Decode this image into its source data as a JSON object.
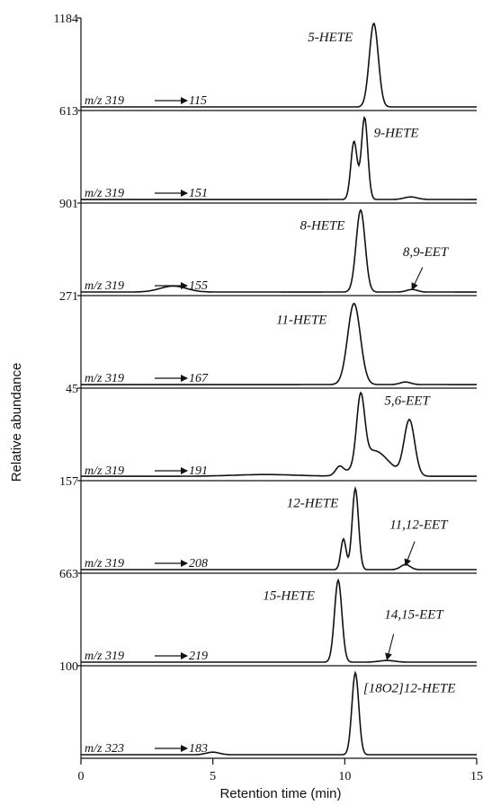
{
  "chart_data": {
    "type": "line",
    "xlabel": "Retention time (min)",
    "ylabel": "Relative abundance",
    "xlim": [
      0,
      15
    ],
    "xticks": [
      "0",
      "5",
      "10",
      "15"
    ],
    "panels": [
      {
        "ymax": "1184",
        "transition": {
          "from": "m/z 319",
          "to": "115"
        },
        "labels": [
          {
            "text": "5-HETE",
            "x": 8.6,
            "y": 0.78
          }
        ],
        "arrows": [],
        "peaks": [
          {
            "x": 11.1,
            "h": 0.98,
            "w": 0.17
          }
        ],
        "baseline": 0.01
      },
      {
        "ymax": "613",
        "transition": {
          "from": "m/z 319",
          "to": "151"
        },
        "labels": [
          {
            "text": "9-HETE",
            "x": 11.1,
            "y": 0.74
          }
        ],
        "arrows": [],
        "peaks": [
          {
            "x": 10.35,
            "h": 0.68,
            "w": 0.12
          },
          {
            "x": 10.75,
            "h": 0.96,
            "w": 0.12
          },
          {
            "x": 12.5,
            "h": 0.03,
            "w": 0.25
          }
        ],
        "baseline": 0.01
      },
      {
        "ymax": "901",
        "transition": {
          "from": "m/z 319",
          "to": "155"
        },
        "labels": [
          {
            "text": "8-HETE",
            "x": 8.3,
            "y": 0.74
          },
          {
            "text": "8,9-EET",
            "x": 12.2,
            "y": 0.43
          }
        ],
        "arrows": [
          {
            "x1": 12.95,
            "y1": 0.3,
            "x2": 12.55,
            "y2": 0.04
          }
        ],
        "peaks": [
          {
            "x": 10.6,
            "h": 0.96,
            "w": 0.17
          },
          {
            "x": 3.5,
            "h": 0.07,
            "w": 0.5
          },
          {
            "x": 12.55,
            "h": 0.03,
            "w": 0.2
          }
        ],
        "baseline": 0.01
      },
      {
        "ymax": "271",
        "transition": {
          "from": "m/z 319",
          "to": "167"
        },
        "labels": [
          {
            "text": "11-HETE",
            "x": 7.4,
            "y": 0.72
          }
        ],
        "arrows": [],
        "peaks": [
          {
            "x": 10.35,
            "h": 0.95,
            "w": 0.24
          },
          {
            "x": 12.3,
            "h": 0.03,
            "w": 0.2
          }
        ],
        "baseline": 0.01
      },
      {
        "ymax": "45",
        "transition": {
          "from": "m/z 319",
          "to": "191"
        },
        "labels": [
          {
            "text": "5,6-EET",
            "x": 11.5,
            "y": 0.86
          }
        ],
        "arrows": [],
        "peaks": [
          {
            "x": 10.6,
            "h": 0.78,
            "w": 0.15
          },
          {
            "x": 11.1,
            "h": 0.3,
            "w": 0.55
          },
          {
            "x": 9.8,
            "h": 0.1,
            "w": 0.15
          },
          {
            "x": 12.45,
            "h": 0.65,
            "w": 0.2
          },
          {
            "x": 7.0,
            "h": 0.02,
            "w": 1.2
          }
        ],
        "baseline": 0.02
      },
      {
        "ymax": "157",
        "transition": {
          "from": "m/z 319",
          "to": "208"
        },
        "labels": [
          {
            "text": "12-HETE",
            "x": 7.8,
            "y": 0.74
          },
          {
            "text": "11,12-EET",
            "x": 11.7,
            "y": 0.49
          }
        ],
        "arrows": [
          {
            "x1": 12.65,
            "y1": 0.34,
            "x2": 12.3,
            "y2": 0.06
          }
        ],
        "peaks": [
          {
            "x": 10.4,
            "h": 0.95,
            "w": 0.12
          },
          {
            "x": 9.95,
            "h": 0.36,
            "w": 0.1
          },
          {
            "x": 12.3,
            "h": 0.06,
            "w": 0.18
          }
        ],
        "baseline": 0.01
      },
      {
        "ymax": "663",
        "transition": {
          "from": "m/z 319",
          "to": "219"
        },
        "labels": [
          {
            "text": "15-HETE",
            "x": 6.9,
            "y": 0.74
          },
          {
            "text": "14,15-EET",
            "x": 11.5,
            "y": 0.52
          }
        ],
        "arrows": [
          {
            "x1": 11.85,
            "y1": 0.34,
            "x2": 11.6,
            "y2": 0.04
          }
        ],
        "peaks": [
          {
            "x": 9.75,
            "h": 0.96,
            "w": 0.14
          },
          {
            "x": 11.6,
            "h": 0.02,
            "w": 0.3
          }
        ],
        "baseline": 0.01
      },
      {
        "ymax": "100",
        "transition": {
          "from": "m/z 323",
          "to": "183"
        },
        "labels": [
          {
            "text": "[18O2]12-HETE",
            "x": 10.7,
            "y": 0.74
          }
        ],
        "arrows": [],
        "peaks": [
          {
            "x": 10.4,
            "h": 0.96,
            "w": 0.13
          },
          {
            "x": 5.0,
            "h": 0.03,
            "w": 0.25
          }
        ],
        "baseline": 0.01
      }
    ]
  }
}
